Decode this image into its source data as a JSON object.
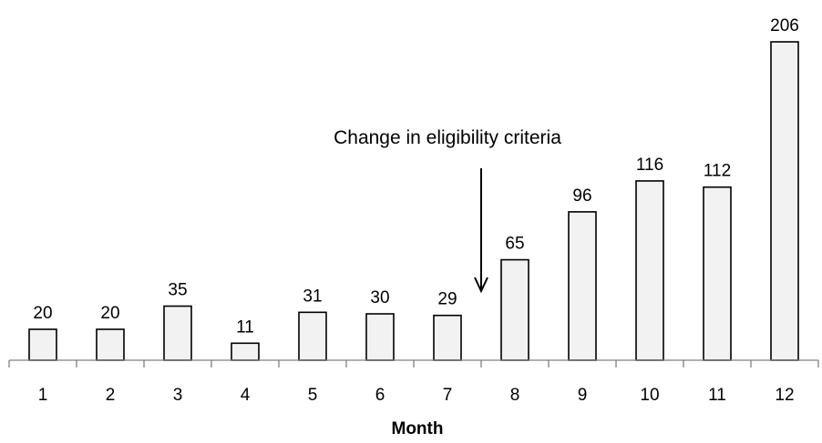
{
  "chart_data": {
    "type": "bar",
    "categories": [
      "1",
      "2",
      "3",
      "4",
      "5",
      "6",
      "7",
      "8",
      "9",
      "10",
      "11",
      "12"
    ],
    "values": [
      20,
      20,
      35,
      11,
      31,
      30,
      29,
      65,
      96,
      116,
      112,
      206
    ],
    "xlabel": "Month",
    "ylim": [
      0,
      206
    ],
    "grid": false,
    "annotation": {
      "text": "Change in eligibility criteria",
      "between_categories": [
        "7",
        "8"
      ]
    }
  }
}
